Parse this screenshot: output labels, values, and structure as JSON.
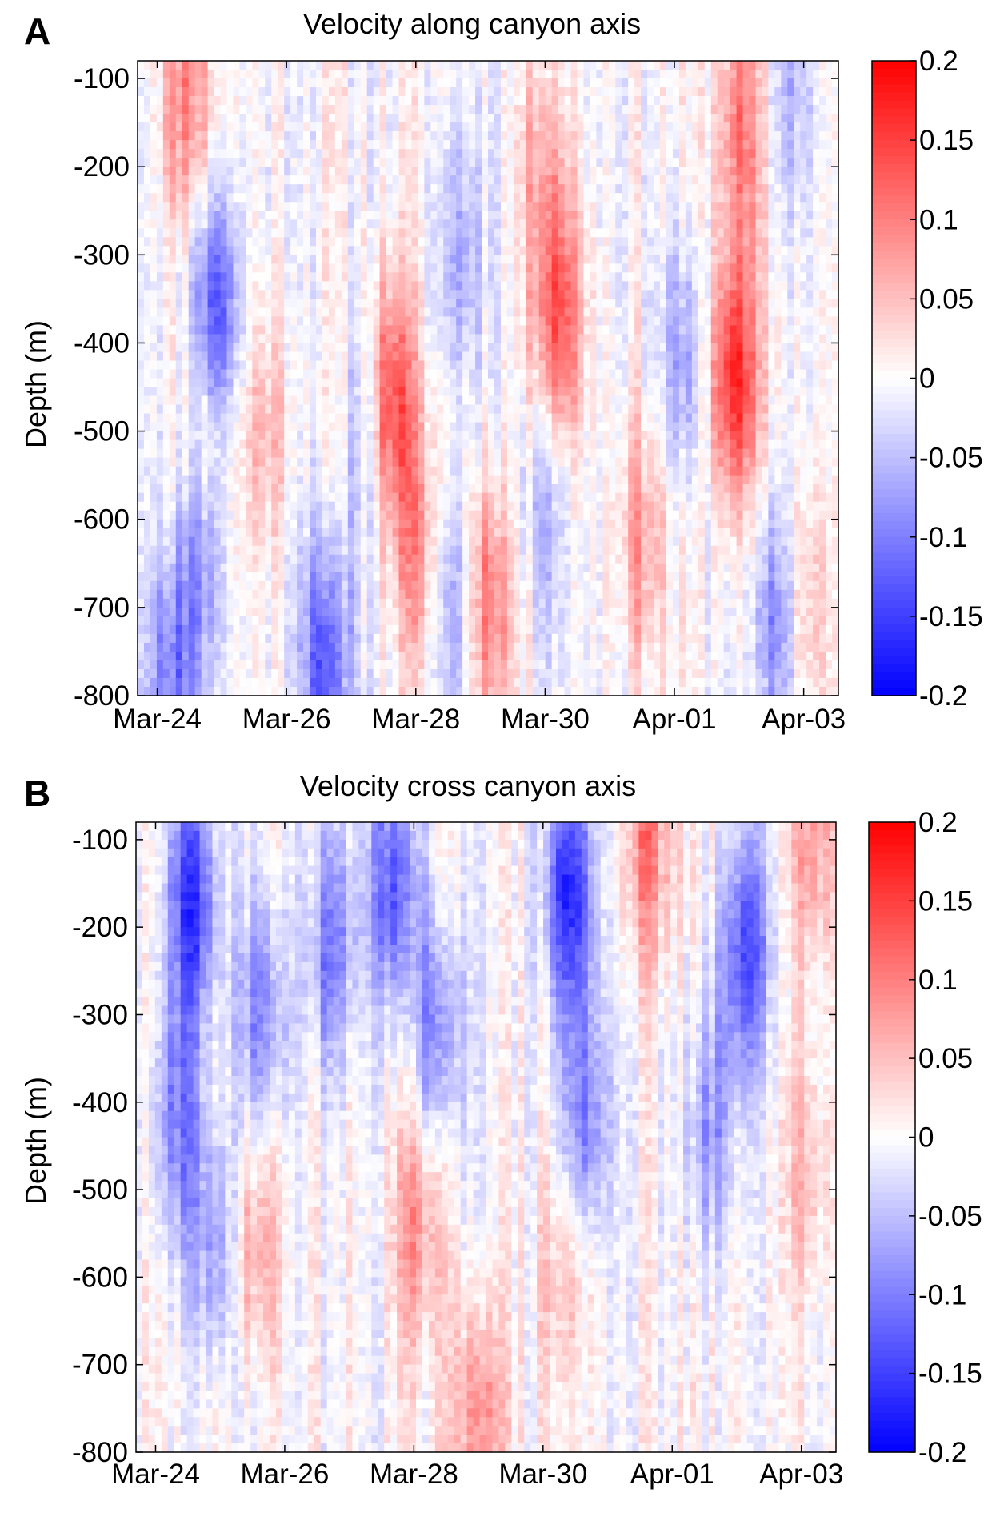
{
  "chart_data": [
    {
      "type": "heatmap",
      "panel_label": "A",
      "title": "Velocity along canyon axis",
      "xlabel": "",
      "ylabel": "Depth (m)",
      "x_ticks": [
        "Mar-24",
        "Mar-26",
        "Mar-28",
        "Mar-30",
        "Apr-01",
        "Apr-03"
      ],
      "y_ticks": [
        "-100",
        "-200",
        "-300",
        "-400",
        "-500",
        "-600",
        "-700",
        "-800"
      ],
      "ylim": [
        -800,
        -80
      ],
      "colorbar_ticks": [
        "0.2",
        "0.15",
        "0.1",
        "0.05",
        "0",
        "-0.05",
        "-0.1",
        "-0.15",
        "-0.2"
      ],
      "clim": [
        -0.2,
        0.2
      ],
      "colormap": {
        "min_color": "#0000ff",
        "zero_color": "#ffffff",
        "max_color": "#ff0000"
      },
      "features": [
        {
          "x": 0.07,
          "y": -130,
          "value": 0.1
        },
        {
          "x": 0.1,
          "y": -480,
          "value": 0.08
        },
        {
          "x": 0.11,
          "y": -380,
          "value": -0.16
        },
        {
          "x": 0.09,
          "y": -640,
          "value": -0.08
        },
        {
          "x": 0.05,
          "y": -780,
          "value": -0.1
        },
        {
          "x": 0.18,
          "y": -500,
          "value": 0.06
        },
        {
          "x": 0.27,
          "y": -760,
          "value": -0.14
        },
        {
          "x": 0.33,
          "y": -500,
          "value": -0.07
        },
        {
          "x": 0.36,
          "y": -470,
          "value": 0.16
        },
        {
          "x": 0.4,
          "y": -640,
          "value": 0.08
        },
        {
          "x": 0.45,
          "y": -700,
          "value": -0.08
        },
        {
          "x": 0.5,
          "y": -700,
          "value": 0.12
        },
        {
          "x": 0.46,
          "y": -300,
          "value": -0.06
        },
        {
          "x": 0.6,
          "y": -380,
          "value": 0.14
        },
        {
          "x": 0.58,
          "y": -200,
          "value": 0.07
        },
        {
          "x": 0.58,
          "y": -580,
          "value": -0.05
        },
        {
          "x": 0.72,
          "y": -620,
          "value": 0.08
        },
        {
          "x": 0.78,
          "y": -420,
          "value": -0.08
        },
        {
          "x": 0.85,
          "y": -440,
          "value": 0.17
        },
        {
          "x": 0.86,
          "y": -150,
          "value": 0.1
        },
        {
          "x": 0.91,
          "y": -720,
          "value": -0.1
        },
        {
          "x": 0.95,
          "y": -700,
          "value": 0.06
        },
        {
          "x": 0.93,
          "y": -120,
          "value": -0.05
        }
      ]
    },
    {
      "type": "heatmap",
      "panel_label": "B",
      "title": "Velocity cross canyon axis",
      "xlabel": "",
      "ylabel": "Depth (m)",
      "x_ticks": [
        "Mar-24",
        "Mar-26",
        "Mar-28",
        "Mar-30",
        "Apr-01",
        "Apr-03"
      ],
      "y_ticks": [
        "-100",
        "-200",
        "-300",
        "-400",
        "-500",
        "-600",
        "-700",
        "-800"
      ],
      "ylim": [
        -800,
        -80
      ],
      "colorbar_ticks": [
        "0.2",
        "0.15",
        "0.1",
        "0.05",
        "0",
        "-0.05",
        "-0.1",
        "-0.15",
        "-0.2"
      ],
      "clim": [
        -0.2,
        0.2
      ],
      "colormap": {
        "min_color": "#0000ff",
        "zero_color": "#ffffff",
        "max_color": "#ff0000"
      },
      "features": [
        {
          "x": 0.08,
          "y": -170,
          "value": -0.16
        },
        {
          "x": 0.06,
          "y": -420,
          "value": -0.1
        },
        {
          "x": 0.11,
          "y": -560,
          "value": -0.08
        },
        {
          "x": 0.18,
          "y": -300,
          "value": -0.09
        },
        {
          "x": 0.17,
          "y": -560,
          "value": 0.07
        },
        {
          "x": 0.28,
          "y": -220,
          "value": -0.1
        },
        {
          "x": 0.37,
          "y": -150,
          "value": -0.13
        },
        {
          "x": 0.43,
          "y": -320,
          "value": -0.1
        },
        {
          "x": 0.4,
          "y": -540,
          "value": 0.08
        },
        {
          "x": 0.49,
          "y": -760,
          "value": 0.1
        },
        {
          "x": 0.62,
          "y": -160,
          "value": -0.17
        },
        {
          "x": 0.64,
          "y": -420,
          "value": -0.1
        },
        {
          "x": 0.61,
          "y": -600,
          "value": 0.05
        },
        {
          "x": 0.73,
          "y": -100,
          "value": 0.1
        },
        {
          "x": 0.87,
          "y": -230,
          "value": -0.14
        },
        {
          "x": 0.82,
          "y": -430,
          "value": -0.08
        },
        {
          "x": 0.97,
          "y": -100,
          "value": 0.08
        },
        {
          "x": 0.96,
          "y": -480,
          "value": 0.05
        }
      ]
    }
  ]
}
